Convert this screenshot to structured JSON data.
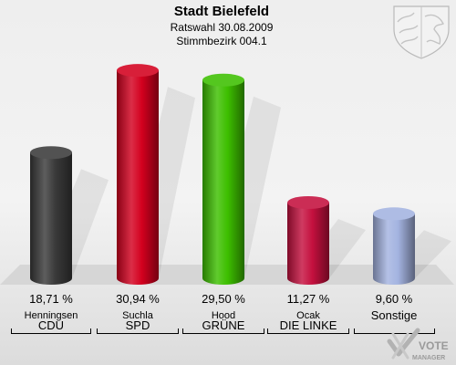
{
  "chart_data": {
    "type": "bar",
    "title": "Stadt Bielefeld",
    "subtitle_lines": [
      "Ratswahl 30.08.2009",
      "Stimmbezirk 004.1"
    ],
    "categories": [
      "CDU",
      "SPD",
      "GRÜNE",
      "DIE LINKE",
      "Sonstige"
    ],
    "candidates": [
      "Henningsen",
      "Suchla",
      "Hood",
      "Ocak",
      ""
    ],
    "value_labels": [
      "18,71 %",
      "30,94 %",
      "29,50 %",
      "11,27 %",
      "9,60 %"
    ],
    "values": [
      18.71,
      30.94,
      29.5,
      11.27,
      9.6
    ],
    "colors": [
      "#3a3a3a",
      "#d3001e",
      "#3dbf00",
      "#c4103e",
      "#a3b3e0"
    ],
    "ylim": [
      0,
      33
    ],
    "grid": false
  },
  "brand": {
    "line1": "VOTE",
    "line2": "MANAGER",
    "icon": "vote-check-icon"
  },
  "emblem": {
    "icon": "coat-of-arms-icon"
  }
}
